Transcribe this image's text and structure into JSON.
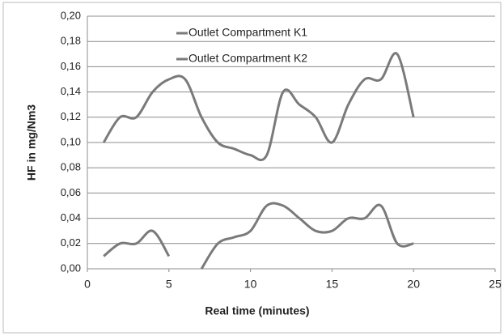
{
  "chart_data": {
    "type": "line",
    "x_label": "Real time (minutes)",
    "y_label": "HF in mg/Nm3",
    "x": [
      1,
      2,
      3,
      4,
      5,
      6,
      7,
      8,
      9,
      10,
      11,
      12,
      13,
      14,
      15,
      16,
      17,
      18,
      19,
      20
    ],
    "series": [
      {
        "name": "Outlet Compartment K1",
        "color": "#7a7a7a",
        "values": [
          0.1,
          0.12,
          0.12,
          0.14,
          0.15,
          0.15,
          0.12,
          0.1,
          0.095,
          0.09,
          0.09,
          0.14,
          0.13,
          0.12,
          0.1,
          0.13,
          0.15,
          0.15,
          0.17,
          0.12
        ]
      },
      {
        "name": "Outlet Compartment K2",
        "color": "#7a7a7a",
        "values": [
          0.01,
          0.02,
          0.02,
          0.03,
          0.01,
          null,
          0,
          0.02,
          0.025,
          0.03,
          0.05,
          0.05,
          0.04,
          0.03,
          0.03,
          0.04,
          0.04,
          0.05,
          0.02,
          0.02
        ]
      }
    ],
    "xlim": [
      0,
      25
    ],
    "xticks": [
      0,
      5,
      10,
      15,
      20,
      25
    ],
    "ylim": [
      0,
      0.2
    ],
    "yticks": [
      {
        "value": 0,
        "label": "0,00"
      },
      {
        "value": 0.02,
        "label": "0,02"
      },
      {
        "value": 0.04,
        "label": "0,04"
      },
      {
        "value": 0.06,
        "label": "0,06"
      },
      {
        "value": 0.08,
        "label": "0,08"
      },
      {
        "value": 0.1,
        "label": "0,10"
      },
      {
        "value": 0.12,
        "label": "0,12"
      },
      {
        "value": 0.14,
        "label": "0,14"
      },
      {
        "value": 0.16,
        "label": "0,16"
      },
      {
        "value": 0.18,
        "label": "0,18"
      },
      {
        "value": 0.2,
        "label": "0,20"
      }
    ],
    "grid": true
  }
}
